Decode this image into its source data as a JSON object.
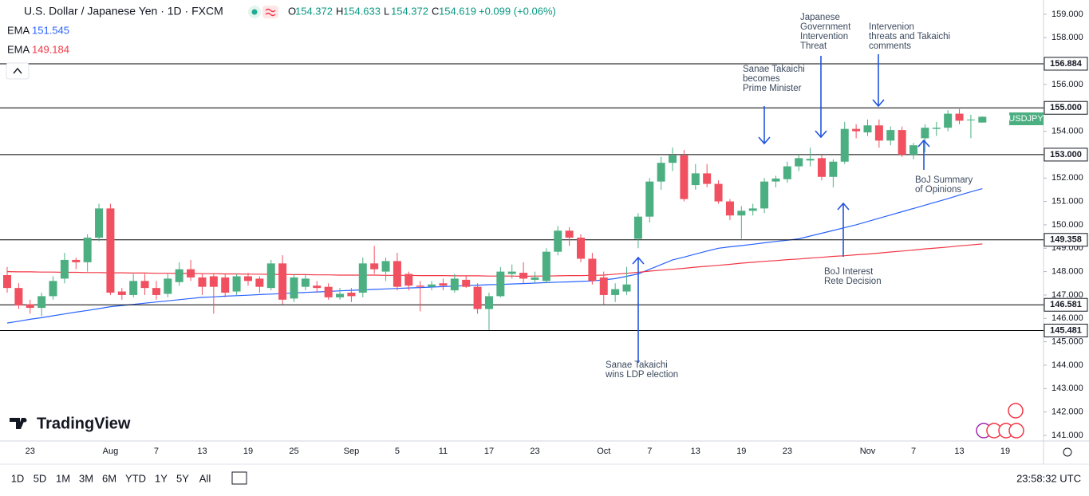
{
  "header": {
    "title": "U.S. Dollar / Japanese Yen · 1D · FXCM",
    "ohlc_labels": [
      "O",
      "H",
      "L",
      "C"
    ],
    "change": "+0.099 (+0.06%)"
  },
  "ui": {
    "logo": "TradingView",
    "timeframes": [
      "1D",
      "5D",
      "1M",
      "3M",
      "6M",
      "YTD",
      "1Y",
      "5Y",
      "All"
    ],
    "clock": "23:58:32 UTC"
  },
  "chart_data": {
    "type": "candlestick",
    "symbol_tag": "USDJPY",
    "up_color": "#4caf82",
    "down_color": "#f0505f",
    "categories": [
      null,
      null,
      "23",
      null,
      null,
      null,
      null,
      null,
      null,
      "Aug",
      null,
      null,
      null,
      "7",
      null,
      null,
      null,
      "13",
      null,
      null,
      null,
      "19",
      null,
      null,
      null,
      "25",
      null,
      null,
      null,
      null,
      "Sep",
      null,
      null,
      null,
      "5",
      null,
      null,
      null,
      "11",
      null,
      null,
      null,
      "17",
      null,
      null,
      null,
      "23",
      null,
      null,
      null,
      null,
      null,
      "Oct",
      null,
      null,
      null,
      "7",
      null,
      null,
      null,
      "13",
      null,
      null,
      null,
      "19",
      null,
      null,
      null,
      "23",
      null,
      null,
      null,
      null,
      null,
      null,
      "Nov",
      null,
      null,
      null,
      "7",
      null,
      null,
      null,
      "13",
      null,
      null,
      null,
      "19",
      null,
      null
    ],
    "open": [
      147.85,
      147.3,
      146.6,
      146.45,
      146.95,
      147.7,
      148.5,
      148.4,
      149.45,
      150.7,
      147.15,
      147.0,
      147.6,
      147.3,
      147.05,
      147.55,
      148.1,
      147.75,
      147.8,
      147.75,
      147.15,
      147.8,
      147.7,
      147.3,
      148.35,
      146.85,
      147.35,
      147.4,
      147.35,
      146.9,
      147.1,
      147.1,
      148.35,
      148.0,
      148.45,
      147.9,
      147.4,
      147.35,
      147.5,
      147.2,
      147.65,
      147.35,
      146.4,
      146.95,
      147.9,
      147.95,
      147.65,
      147.6,
      148.85,
      149.75,
      149.45,
      148.55,
      147.75,
      147.0,
      147.15,
      149.4,
      150.35,
      151.85,
      152.65,
      152.97,
      151.7,
      152.2,
      151.75,
      151.0,
      150.4,
      150.6,
      150.7,
      151.85,
      151.95,
      152.5,
      152.75,
      152.85,
      152.05,
      152.7,
      154.1,
      153.95,
      154.25,
      153.6,
      154.05,
      153.0,
      153.7,
      154.1,
      154.15,
      154.75,
      154.5,
      154.372,
      null,
      null,
      null,
      null
    ],
    "high": [
      148.2,
      147.5,
      146.8,
      147.1,
      147.8,
      148.8,
      148.6,
      149.6,
      150.9,
      150.9,
      147.3,
      147.9,
      147.9,
      147.6,
      147.9,
      148.4,
      148.5,
      147.9,
      147.9,
      147.9,
      147.9,
      147.95,
      147.8,
      148.5,
      148.7,
      147.9,
      147.9,
      147.6,
      147.5,
      147.3,
      147.3,
      148.6,
      149.1,
      148.6,
      148.8,
      148.0,
      147.6,
      147.6,
      147.7,
      147.9,
      147.8,
      147.5,
      147.1,
      148.2,
      148.3,
      148.4,
      148.0,
      149.0,
      149.95,
      149.9,
      149.6,
      148.8,
      148.0,
      147.5,
      148.2,
      150.5,
      152.0,
      152.9,
      153.3,
      153.2,
      152.6,
      152.6,
      151.9,
      151.1,
      150.8,
      150.9,
      152.0,
      152.1,
      152.7,
      153.0,
      153.3,
      153.0,
      152.8,
      154.4,
      154.3,
      154.5,
      154.5,
      154.2,
      154.2,
      153.5,
      154.3,
      154.4,
      154.9,
      154.95,
      154.7,
      154.633,
      null,
      null,
      null,
      null
    ],
    "low": [
      147.1,
      146.4,
      146.2,
      146.1,
      146.8,
      147.5,
      148.1,
      148.0,
      149.3,
      147.0,
      146.8,
      146.9,
      147.0,
      146.8,
      146.9,
      147.4,
      147.6,
      147.0,
      146.2,
      146.9,
      147.0,
      147.4,
      147.1,
      147.2,
      146.6,
      146.7,
      147.2,
      147.1,
      146.8,
      146.8,
      146.7,
      146.9,
      147.9,
      147.6,
      147.2,
      147.2,
      146.3,
      147.2,
      147.2,
      147.1,
      147.3,
      146.2,
      145.5,
      146.9,
      147.7,
      147.5,
      147.5,
      147.5,
      148.7,
      149.1,
      148.4,
      147.45,
      146.6,
      146.7,
      147.0,
      149.0,
      150.1,
      151.5,
      152.3,
      151.0,
      151.5,
      151.6,
      150.9,
      150.2,
      149.4,
      150.4,
      150.5,
      151.6,
      151.8,
      152.3,
      152.5,
      151.9,
      151.6,
      152.6,
      153.7,
      153.8,
      153.3,
      153.4,
      152.9,
      152.8,
      153.1,
      153.8,
      154.0,
      154.3,
      153.7,
      154.372,
      null,
      null,
      null,
      null
    ],
    "close": [
      147.3,
      146.55,
      146.45,
      146.95,
      147.6,
      148.5,
      148.4,
      149.45,
      150.7,
      147.1,
      147.0,
      147.6,
      147.3,
      147.0,
      147.7,
      148.1,
      147.75,
      147.35,
      147.35,
      147.1,
      147.8,
      147.6,
      147.35,
      148.35,
      146.8,
      147.75,
      147.7,
      147.3,
      146.9,
      147.05,
      146.95,
      148.35,
      148.1,
      148.45,
      147.35,
      147.4,
      147.35,
      147.45,
      147.4,
      147.7,
      147.35,
      146.4,
      146.95,
      148.0,
      148.0,
      147.7,
      147.75,
      148.85,
      149.75,
      149.45,
      148.55,
      147.6,
      147.0,
      147.25,
      147.45,
      150.35,
      151.85,
      152.65,
      152.97,
      151.1,
      152.2,
      151.75,
      151.0,
      150.4,
      150.6,
      150.7,
      151.85,
      151.98,
      152.5,
      152.85,
      152.82,
      152.05,
      152.7,
      154.1,
      154.0,
      154.25,
      153.6,
      154.05,
      153.0,
      153.4,
      154.15,
      154.15,
      154.75,
      154.45,
      154.5,
      154.619,
      null,
      null,
      null,
      null
    ],
    "series": [
      {
        "name": "EMA",
        "color": "#2962ff",
        "values": [
          145.8,
          145.88,
          145.96,
          146.03,
          146.11,
          146.19,
          146.27,
          146.34,
          146.42,
          146.5,
          146.55,
          146.6,
          146.65,
          146.7,
          146.75,
          146.8,
          146.85,
          146.9,
          146.92,
          146.95,
          146.97,
          146.99,
          147.02,
          147.04,
          147.06,
          147.09,
          147.11,
          147.13,
          147.15,
          147.18,
          147.2,
          147.22,
          147.24,
          147.26,
          147.28,
          147.3,
          147.32,
          147.34,
          147.36,
          147.38,
          147.4,
          147.42,
          147.44,
          147.45,
          147.47,
          147.49,
          147.51,
          147.53,
          147.55,
          147.56,
          147.58,
          147.6,
          147.65,
          147.7,
          147.8,
          147.9,
          148.1,
          148.3,
          148.5,
          148.62,
          148.75,
          148.88,
          149.0,
          149.06,
          149.11,
          149.17,
          149.23,
          149.29,
          149.34,
          149.4,
          149.52,
          149.64,
          149.76,
          149.88,
          150.0,
          150.14,
          150.28,
          150.42,
          150.56,
          150.7,
          150.84,
          150.98,
          151.12,
          151.27,
          151.41,
          151.545,
          null,
          null,
          null,
          null
        ]
      },
      {
        "name": "EMA",
        "color": "#f23645",
        "values": [
          148.0,
          147.99,
          147.99,
          147.98,
          147.98,
          147.97,
          147.97,
          147.96,
          147.96,
          147.95,
          147.95,
          147.94,
          147.94,
          147.93,
          147.93,
          147.92,
          147.92,
          147.91,
          147.91,
          147.9,
          147.9,
          147.89,
          147.89,
          147.88,
          147.88,
          147.87,
          147.87,
          147.86,
          147.86,
          147.85,
          147.85,
          147.85,
          147.85,
          147.84,
          147.84,
          147.84,
          147.83,
          147.83,
          147.83,
          147.82,
          147.82,
          147.82,
          147.81,
          147.81,
          147.81,
          147.8,
          147.81,
          147.81,
          147.82,
          147.83,
          147.83,
          147.84,
          147.85,
          147.89,
          147.93,
          147.97,
          148.02,
          148.06,
          148.1,
          148.14,
          148.19,
          148.23,
          148.27,
          148.31,
          148.36,
          148.4,
          148.44,
          148.47,
          148.51,
          148.54,
          148.58,
          148.61,
          148.65,
          148.68,
          148.72,
          148.75,
          148.79,
          148.84,
          148.88,
          148.92,
          148.97,
          149.01,
          149.05,
          149.1,
          149.14,
          149.184,
          null,
          null,
          null,
          null
        ]
      }
    ],
    "levels": [
      156.884,
      {
        "value": 155,
        "label": "155.000"
      },
      {
        "value": 153,
        "label": "153.000"
      },
      149.358,
      146.581,
      145.481
    ],
    "ylim": [
      140.76,
      159.61
    ],
    "yticks": [
      {
        "value": 141,
        "label": "141.000"
      },
      {
        "value": 142,
        "label": "142.000"
      },
      {
        "value": 143,
        "label": "143.000"
      },
      {
        "value": 144,
        "label": "144.000"
      },
      {
        "value": 145,
        "label": "145.000"
      },
      {
        "value": 146,
        "label": "146.000"
      },
      {
        "value": 147,
        "label": "147.000"
      },
      {
        "value": 148,
        "label": "148.000"
      },
      {
        "value": 149,
        "label": "149.000"
      },
      {
        "value": 150,
        "label": "150.000"
      },
      {
        "value": 151,
        "label": "151.000"
      },
      {
        "value": 152,
        "label": "152.000"
      },
      {
        "value": 154,
        "label": "154.000"
      },
      {
        "value": 156,
        "label": "156.000"
      },
      {
        "value": 158,
        "label": "158.000"
      },
      {
        "value": 159,
        "label": "159.000"
      }
    ],
    "grid": false,
    "annotations": [
      {
        "lines": [
          "Japanese",
          "Government",
          "Intervention",
          "Threat"
        ]
      },
      {
        "lines": [
          "Intervenion",
          "threats and Takaichi",
          "comments"
        ]
      },
      {
        "lines": [
          "Sanae Takaichi",
          "becomes",
          "Prime Minister"
        ]
      },
      {
        "lines": [
          "BoJ Summary",
          "of Opinions"
        ]
      },
      {
        "lines": [
          "BoJ Interest",
          "Rete Decision"
        ]
      },
      {
        "lines": [
          "Sanae Takaichi",
          "wins LDP election"
        ]
      }
    ]
  }
}
